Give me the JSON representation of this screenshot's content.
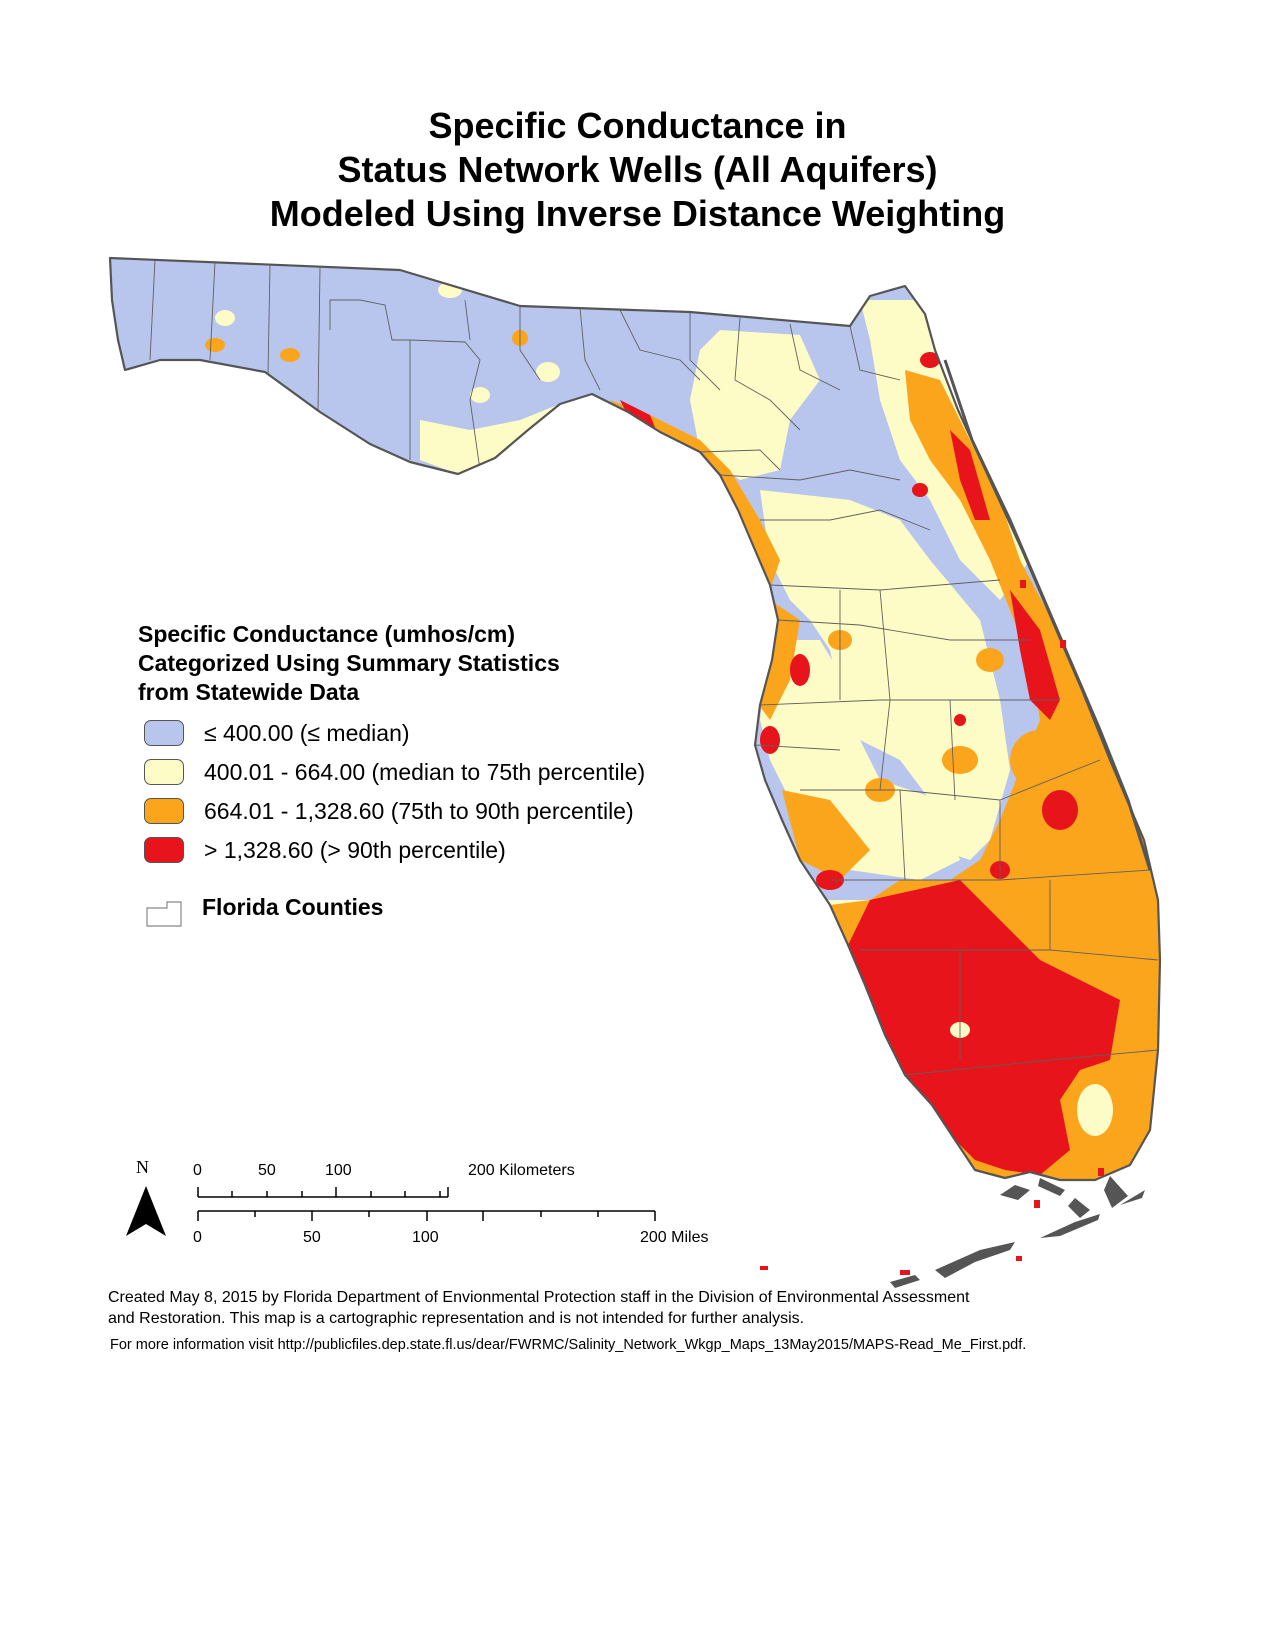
{
  "title": {
    "line1": "Specific Conductance in",
    "line2": "Status Network Wells (All Aquifers)",
    "line3": "Modeled Using Inverse Distance Weighting"
  },
  "legend": {
    "heading_line1": "Specific Conductance (umhos/cm)",
    "heading_line2": "Categorized Using Summary Statistics",
    "heading_line3": "from Statewide Data",
    "classes": [
      {
        "label": "≤ 400.00 (≤ median)",
        "color": "#b8c6ee"
      },
      {
        "label": "400.01 - 664.00 (median to 75th percentile)",
        "color": "#fefcc6"
      },
      {
        "label": "664.01 - 1,328.60 (75th to 90th percentile)",
        "color": "#fba51c"
      },
      {
        "label": "> 1,328.60 (> 90th percentile)",
        "color": "#e8141c"
      }
    ],
    "counties_label": "Florida Counties"
  },
  "scale_bar": {
    "north_label": "N",
    "km_ticks": [
      "0",
      "50",
      "100",
      "200 Kilometers"
    ],
    "mile_ticks": [
      "0",
      "50",
      "100",
      "200 Miles"
    ]
  },
  "credits": {
    "line1": "Created May 8, 2015 by Florida Department of Envionmental Protection staff in the Division of Environmental Assessment",
    "line2": "and Restoration.  This map is a cartographic representation and is not intended for further analysis.",
    "info": "For more information visit http://publicfiles.dep.state.fl.us/dear/FWRMC/Salinity_Network_Wkgp_Maps_13May2015/MAPS-Read_Me_First.pdf."
  }
}
